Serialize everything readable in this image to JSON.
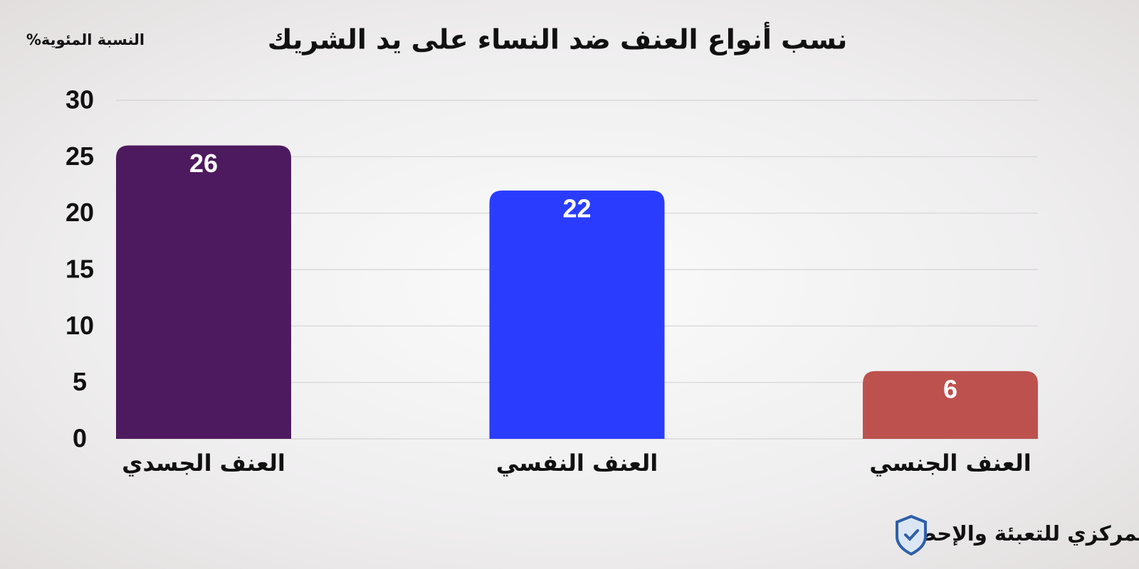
{
  "chart_data": {
    "type": "bar",
    "title": "نسب أنواع العنف ضد النساء على يد الشريك",
    "y_label": "النسبة المئوية%",
    "categories": [
      "العنف الجسدي",
      "العنف النفسي",
      "العنف الجنسي"
    ],
    "values": [
      26,
      22,
      6
    ],
    "colors": [
      "#4e1a5f",
      "#2a3dff",
      "#bd514e"
    ],
    "ylim": [
      0,
      30
    ],
    "yticks": [
      0,
      5,
      10,
      15,
      20,
      25,
      30
    ],
    "grid": true,
    "source": "المصدر: المسح الصحي للأسرة المصرية/ الجهاز المركزي للتعبئة والإحصاء"
  }
}
